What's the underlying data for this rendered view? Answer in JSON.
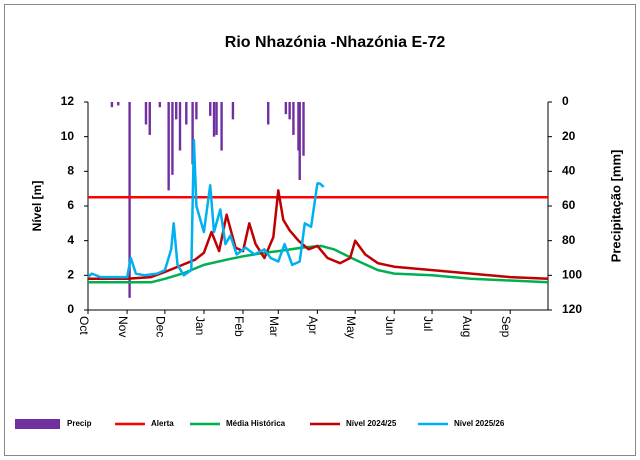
{
  "chart_data": {
    "type": "line",
    "title": "Rio Nhazónia -Nhazónia E-72",
    "ylabel": "Nível [m]",
    "y2label": "Precipitação [mm]",
    "xlim": [
      0,
      365
    ],
    "xticks": [
      {
        "value": 0,
        "label": "Oct"
      },
      {
        "value": 31,
        "label": "Nov"
      },
      {
        "value": 61,
        "label": "Dec"
      },
      {
        "value": 92,
        "label": "Jan"
      },
      {
        "value": 123,
        "label": "Feb"
      },
      {
        "value": 151,
        "label": "Mar"
      },
      {
        "value": 182,
        "label": "Apr"
      },
      {
        "value": 212,
        "label": "May"
      },
      {
        "value": 243,
        "label": "Jun"
      },
      {
        "value": 273,
        "label": "Jul"
      },
      {
        "value": 304,
        "label": "Aug"
      },
      {
        "value": 335,
        "label": "Sep"
      }
    ],
    "ylim": [
      0,
      12
    ],
    "yticks": [
      0,
      2,
      4,
      6,
      8,
      10,
      12
    ],
    "y2lim": [
      0,
      120
    ],
    "y2ticks": [
      0,
      20,
      40,
      60,
      80,
      100,
      120
    ],
    "y2_inverted": true,
    "legend": "bottom",
    "series": [
      {
        "name": "Precip",
        "type": "bar",
        "axis": "y2",
        "color": "#7030a0",
        "x": [
          19,
          24,
          33,
          46,
          49,
          57,
          64,
          67,
          70,
          73,
          78,
          83,
          86,
          97,
          100,
          102,
          106,
          115,
          143,
          157,
          160,
          163,
          167,
          168,
          171
        ],
        "values": [
          3,
          2,
          113,
          13,
          19,
          3,
          51,
          42,
          10,
          28,
          13,
          36,
          10,
          8,
          20,
          19,
          28,
          10,
          13,
          7,
          10,
          19,
          28,
          45,
          31
        ]
      },
      {
        "name": "Alerta",
        "type": "line",
        "color": "#ff0000",
        "x": [
          0,
          365
        ],
        "values": [
          6.5,
          6.5
        ]
      },
      {
        "name": "Média Histórica",
        "type": "line",
        "color": "#00b050",
        "x": [
          0,
          31,
          50,
          61,
          75,
          92,
          110,
          123,
          140,
          151,
          170,
          185,
          195,
          212,
          230,
          243,
          273,
          304,
          335,
          365
        ],
        "values": [
          1.6,
          1.6,
          1.6,
          1.8,
          2.1,
          2.6,
          2.9,
          3.1,
          3.3,
          3.4,
          3.6,
          3.7,
          3.5,
          2.9,
          2.3,
          2.1,
          2.0,
          1.8,
          1.7,
          1.6
        ]
      },
      {
        "name": "Nível 2024/25",
        "type": "line",
        "color": "#c00000",
        "x": [
          0,
          31,
          50,
          61,
          75,
          85,
          92,
          98,
          104,
          110,
          117,
          123,
          128,
          133,
          140,
          147,
          151,
          155,
          160,
          167,
          175,
          182,
          190,
          200,
          208,
          212,
          220,
          230,
          243,
          273,
          304,
          335,
          365
        ],
        "values": [
          1.8,
          1.8,
          1.9,
          2.2,
          2.6,
          2.9,
          3.3,
          4.5,
          3.4,
          5.5,
          3.6,
          3.4,
          5.0,
          3.8,
          3.0,
          4.2,
          6.9,
          5.2,
          4.6,
          4.0,
          3.5,
          3.7,
          3.0,
          2.7,
          3.0,
          4.0,
          3.2,
          2.7,
          2.5,
          2.3,
          2.1,
          1.9,
          1.8
        ]
      },
      {
        "name": "Nível 2025/26",
        "type": "line",
        "color": "#00b0f0",
        "x": [
          0,
          3,
          10,
          25,
          31,
          34,
          38,
          45,
          55,
          61,
          66,
          68,
          71,
          76,
          82,
          84,
          86,
          92,
          97,
          100,
          105,
          109,
          113,
          118,
          125,
          132,
          140,
          145,
          151,
          156,
          162,
          168,
          172,
          177,
          182,
          184,
          187
        ],
        "values": [
          1.9,
          2.1,
          1.9,
          1.9,
          1.9,
          3.0,
          2.1,
          2.0,
          2.1,
          2.3,
          3.5,
          5.0,
          2.6,
          2.0,
          2.3,
          9.8,
          6.0,
          4.5,
          7.2,
          4.5,
          5.8,
          3.8,
          4.3,
          3.2,
          3.6,
          3.2,
          3.5,
          3.0,
          2.8,
          3.8,
          2.6,
          2.8,
          5.0,
          4.8,
          7.3,
          7.3,
          7.1
        ]
      }
    ]
  }
}
